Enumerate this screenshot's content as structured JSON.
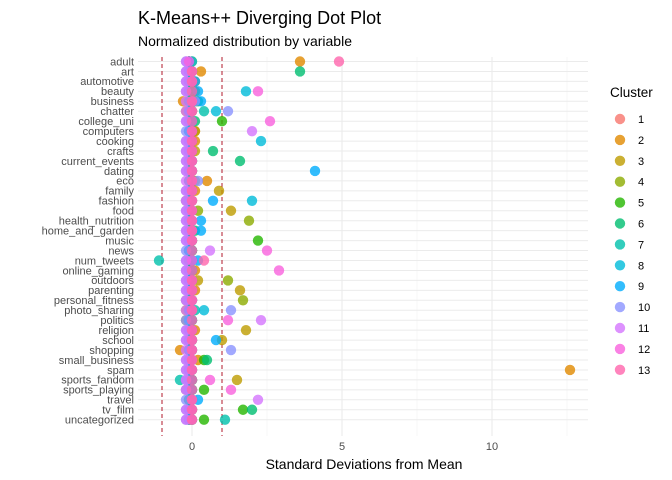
{
  "chart_data": {
    "type": "scatter",
    "title": "K-Means++ Diverging Dot Plot",
    "subtitle": "Normalized distribution by variable",
    "xlabel": "Standard Deviations from Mean",
    "ylabel": "",
    "xlim": [
      -1.8,
      13.2
    ],
    "xticks": [
      0,
      5,
      10
    ],
    "reference_lines": [
      -1,
      1
    ],
    "grid": true,
    "legend_title": "Cluster",
    "legend_position": "right",
    "variables": [
      "adult",
      "art",
      "automotive",
      "beauty",
      "business",
      "chatter",
      "college_uni",
      "computers",
      "cooking",
      "crafts",
      "current_events",
      "dating",
      "eco",
      "family",
      "fashion",
      "food",
      "health_nutrition",
      "home_and_garden",
      "music",
      "news",
      "num_tweets",
      "online_gaming",
      "outdoors",
      "parenting",
      "personal_fitness",
      "photo_sharing",
      "politics",
      "religion",
      "school",
      "shopping",
      "small_business",
      "spam",
      "sports_fandom",
      "sports_playing",
      "travel",
      "tv_film",
      "uncategorized"
    ],
    "series": [
      {
        "name": "1",
        "color": "#F8766D",
        "values": [
          -0.1,
          -0.1,
          -0.1,
          -0.1,
          -0.1,
          -0.1,
          -0.1,
          -0.1,
          -0.1,
          -0.1,
          -0.1,
          -0.1,
          -0.1,
          -0.1,
          -0.1,
          -0.1,
          -0.1,
          -0.1,
          -0.1,
          -0.1,
          -0.1,
          -0.1,
          -0.1,
          -0.1,
          -0.1,
          -0.1,
          -0.1,
          -0.1,
          -0.1,
          -0.1,
          -0.1,
          -0.1,
          -0.1,
          -0.1,
          -0.1,
          -0.1,
          -0.1
        ]
      },
      {
        "name": "2",
        "color": "#E18A00",
        "values": [
          3.6,
          0.3,
          0.1,
          0.1,
          -0.3,
          0.0,
          -0.1,
          0.1,
          0.1,
          0.0,
          0.0,
          0.0,
          0.5,
          0.1,
          -0.2,
          0.0,
          0.0,
          0.0,
          0.0,
          0.0,
          0.0,
          0.1,
          0.0,
          0.1,
          0.0,
          0.0,
          0.0,
          0.1,
          0.0,
          -0.4,
          0.2,
          12.6,
          0.0,
          -0.2,
          0.0,
          0.0,
          -0.1
        ]
      },
      {
        "name": "3",
        "color": "#BE9C00",
        "values": [
          -0.1,
          -0.1,
          0.0,
          -0.1,
          0.1,
          -0.2,
          0.0,
          0.1,
          0.0,
          0.1,
          -0.1,
          -0.1,
          0.1,
          0.9,
          -0.1,
          1.3,
          -0.1,
          0.0,
          -0.1,
          -0.1,
          0.0,
          -0.1,
          0.2,
          1.6,
          -0.2,
          -0.2,
          -0.2,
          1.8,
          1.0,
          -0.1,
          0.0,
          -0.1,
          1.5,
          0.0,
          0.0,
          0.0,
          0.0
        ]
      },
      {
        "name": "4",
        "color": "#8CAB00",
        "values": [
          0.0,
          0.0,
          0.0,
          0.0,
          0.0,
          0.0,
          0.0,
          0.0,
          0.0,
          0.0,
          0.0,
          0.0,
          0.0,
          0.0,
          0.0,
          0.2,
          1.9,
          0.0,
          0.0,
          0.0,
          0.0,
          0.0,
          1.2,
          0.0,
          1.7,
          0.0,
          0.0,
          0.0,
          0.0,
          0.0,
          0.0,
          0.0,
          0.0,
          0.0,
          0.0,
          0.0,
          0.0
        ]
      },
      {
        "name": "5",
        "color": "#24B700",
        "values": [
          -0.1,
          -0.1,
          -0.1,
          -0.1,
          0.1,
          0.0,
          1.0,
          0.0,
          0.0,
          0.0,
          -0.1,
          -0.1,
          0.0,
          -0.1,
          -0.1,
          -0.1,
          -0.1,
          0.0,
          2.2,
          0.0,
          -0.1,
          -0.1,
          -0.1,
          -0.1,
          -0.1,
          -0.1,
          -0.1,
          0.0,
          -0.1,
          -0.1,
          0.4,
          -0.1,
          -0.1,
          0.4,
          -0.1,
          1.7,
          0.4
        ]
      },
      {
        "name": "6",
        "color": "#00BE70",
        "values": [
          -0.1,
          3.6,
          -0.1,
          0.0,
          0.2,
          0.0,
          0.1,
          0.0,
          0.0,
          0.7,
          1.6,
          0.0,
          0.0,
          0.0,
          0.0,
          0.0,
          0.0,
          0.1,
          0.0,
          0.0,
          0.0,
          0.0,
          0.0,
          0.0,
          0.0,
          0.0,
          0.0,
          0.0,
          0.0,
          0.0,
          0.5,
          0.0,
          0.0,
          0.0,
          0.0,
          2.0,
          0.0
        ]
      },
      {
        "name": "7",
        "color": "#00C1AB",
        "values": [
          -0.1,
          0.0,
          -0.1,
          -0.1,
          -0.1,
          0.4,
          -0.1,
          -0.1,
          -0.1,
          -0.1,
          -0.1,
          -0.1,
          -0.1,
          -0.1,
          -0.1,
          -0.1,
          -0.1,
          -0.1,
          -0.1,
          -0.1,
          -1.1,
          -0.1,
          -0.1,
          -0.1,
          -0.1,
          0.1,
          -0.1,
          -0.1,
          -0.1,
          -0.1,
          -0.1,
          -0.1,
          -0.4,
          -0.1,
          -0.1,
          -0.1,
          1.1
        ]
      },
      {
        "name": "8",
        "color": "#00BBDA",
        "values": [
          0.0,
          0.0,
          0.0,
          1.8,
          0.0,
          0.8,
          0.0,
          0.0,
          2.3,
          0.0,
          0.0,
          0.0,
          0.0,
          0.0,
          2.0,
          0.0,
          0.0,
          0.0,
          0.0,
          0.0,
          0.0,
          0.0,
          0.0,
          0.0,
          0.0,
          0.4,
          0.0,
          0.0,
          0.0,
          0.0,
          0.0,
          0.0,
          0.0,
          0.0,
          0.0,
          0.0,
          0.0
        ]
      },
      {
        "name": "9",
        "color": "#00ACFC",
        "values": [
          -0.1,
          -0.1,
          0.1,
          0.2,
          0.3,
          -0.1,
          0.0,
          -0.1,
          -0.1,
          -0.1,
          0.0,
          4.1,
          0.0,
          -0.1,
          0.7,
          -0.1,
          0.3,
          0.3,
          -0.1,
          -0.1,
          0.2,
          -0.1,
          -0.1,
          -0.1,
          0.0,
          -0.1,
          -0.1,
          -0.1,
          0.8,
          -0.1,
          -0.1,
          -0.1,
          -0.1,
          -0.1,
          0.2,
          -0.1,
          -0.1
        ]
      },
      {
        "name": "10",
        "color": "#8B93FF",
        "values": [
          -0.2,
          -0.2,
          -0.2,
          -0.2,
          0.1,
          1.2,
          -0.2,
          -0.2,
          -0.2,
          -0.2,
          -0.2,
          -0.2,
          0.2,
          -0.2,
          -0.2,
          -0.2,
          -0.2,
          -0.2,
          -0.2,
          -0.2,
          -0.2,
          -0.2,
          -0.2,
          -0.2,
          -0.2,
          1.3,
          -0.2,
          -0.2,
          -0.2,
          1.3,
          -0.2,
          -0.2,
          -0.2,
          -0.2,
          -0.2,
          -0.2,
          -0.2
        ]
      },
      {
        "name": "11",
        "color": "#D575FE",
        "values": [
          -0.2,
          -0.2,
          -0.2,
          -0.2,
          -0.2,
          -0.2,
          -0.2,
          2.0,
          -0.2,
          -0.2,
          -0.2,
          -0.2,
          -0.2,
          -0.2,
          -0.2,
          -0.2,
          -0.2,
          -0.2,
          -0.2,
          0.6,
          -0.2,
          -0.2,
          -0.2,
          -0.2,
          -0.2,
          -0.2,
          2.3,
          -0.2,
          -0.2,
          -0.2,
          -0.2,
          -0.2,
          -0.2,
          -0.2,
          2.2,
          -0.2,
          -0.2
        ]
      },
      {
        "name": "12",
        "color": "#F962DD",
        "values": [
          -0.1,
          0.0,
          0.0,
          2.2,
          0.0,
          0.0,
          2.6,
          0.0,
          0.0,
          0.0,
          0.0,
          0.0,
          0.0,
          0.0,
          0.0,
          0.0,
          0.0,
          0.0,
          0.0,
          2.5,
          0.0,
          2.9,
          0.0,
          0.0,
          0.0,
          0.0,
          1.2,
          0.0,
          0.0,
          0.0,
          0.0,
          0.0,
          0.6,
          1.3,
          0.0,
          0.0,
          0.0
        ]
      },
      {
        "name": "13",
        "color": "#FF65AC",
        "values": [
          4.9,
          0.0,
          0.0,
          0.0,
          0.0,
          0.0,
          0.0,
          0.0,
          0.0,
          0.0,
          0.0,
          0.0,
          0.0,
          0.0,
          0.0,
          0.0,
          0.0,
          0.0,
          0.0,
          0.0,
          0.4,
          0.0,
          0.0,
          0.0,
          0.0,
          0.0,
          0.0,
          0.0,
          0.0,
          0.0,
          0.0,
          0.0,
          0.0,
          0.0,
          0.0,
          0.0,
          0.0
        ]
      }
    ]
  }
}
